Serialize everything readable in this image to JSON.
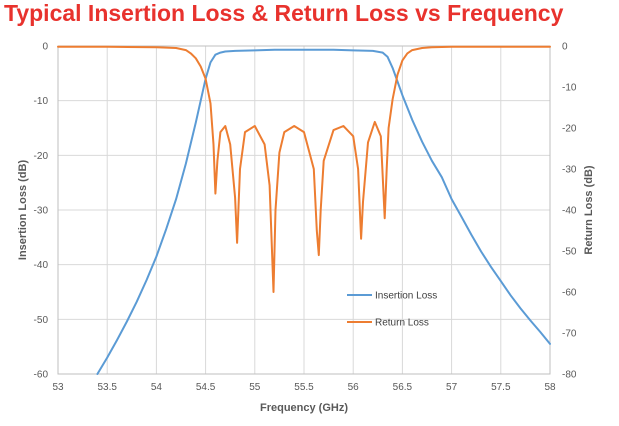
{
  "chart_data": {
    "type": "line",
    "title": "Typical Insertion Loss & Return Loss vs Frequency",
    "xlabel": "Frequency (GHz)",
    "ylabel_left": "Insertion Loss (dB)",
    "ylabel_right": "Return Loss (dB)",
    "xlim": [
      53,
      58
    ],
    "ylim_left": [
      -60,
      0
    ],
    "ylim_right": [
      -80,
      0
    ],
    "x_ticks": [
      "53",
      "53.5",
      "54",
      "54.5",
      "55",
      "55.5",
      "56",
      "56.5",
      "57",
      "57.5",
      "58"
    ],
    "y_ticks_left": [
      "0",
      "-10",
      "-20",
      "-30",
      "-40",
      "-50",
      "-60"
    ],
    "y_ticks_right": [
      "0",
      "-10",
      "-20",
      "-30",
      "-40",
      "-50",
      "-60",
      "-70",
      "-80"
    ],
    "grid": true,
    "legend_position": "center-right",
    "series": [
      {
        "name": "Insertion Loss",
        "axis": "left",
        "color": "#5b9bd5",
        "x": [
          53.4,
          53.5,
          53.6,
          53.7,
          53.8,
          53.9,
          54.0,
          54.1,
          54.2,
          54.3,
          54.4,
          54.5,
          54.55,
          54.6,
          54.65,
          54.7,
          54.8,
          55.0,
          55.2,
          55.5,
          55.8,
          56.0,
          56.2,
          56.3,
          56.35,
          56.4,
          56.45,
          56.5,
          56.6,
          56.7,
          56.8,
          56.9,
          57.0,
          57.1,
          57.2,
          57.3,
          57.4,
          57.5,
          57.6,
          57.7,
          57.8,
          57.9,
          58.0
        ],
        "y": [
          -60.0,
          -57.0,
          -53.8,
          -50.4,
          -46.8,
          -42.8,
          -38.5,
          -33.5,
          -28.0,
          -21.5,
          -14.0,
          -6.0,
          -3.0,
          -1.6,
          -1.2,
          -1.0,
          -0.9,
          -0.8,
          -0.7,
          -0.7,
          -0.7,
          -0.8,
          -0.9,
          -1.2,
          -2.0,
          -4.0,
          -6.5,
          -9.0,
          -13.5,
          -17.5,
          -21.0,
          -24.0,
          -28.0,
          -31.2,
          -34.5,
          -37.6,
          -40.4,
          -43.0,
          -45.6,
          -48.0,
          -50.2,
          -52.3,
          -54.5
        ]
      },
      {
        "name": "Return Loss",
        "axis": "right",
        "color": "#ed7d31",
        "x": [
          53.0,
          53.5,
          54.0,
          54.2,
          54.3,
          54.35,
          54.4,
          54.45,
          54.5,
          54.55,
          54.58,
          54.6,
          54.62,
          54.65,
          54.7,
          54.75,
          54.8,
          54.82,
          54.85,
          54.9,
          55.0,
          55.1,
          55.15,
          55.19,
          55.21,
          55.25,
          55.3,
          55.4,
          55.5,
          55.6,
          55.63,
          55.65,
          55.67,
          55.7,
          55.8,
          55.9,
          56.0,
          56.05,
          56.08,
          56.1,
          56.15,
          56.22,
          56.28,
          56.32,
          56.34,
          56.36,
          56.4,
          56.45,
          56.5,
          56.55,
          56.6,
          56.7,
          56.8,
          57.0,
          57.5,
          58.0
        ],
        "y": [
          -0.2,
          -0.2,
          -0.3,
          -0.5,
          -1.0,
          -1.8,
          -3.0,
          -5.0,
          -8.0,
          -14.0,
          -24.0,
          -36.0,
          -28.0,
          -21.0,
          -19.5,
          -24.0,
          -37.0,
          -48.0,
          -30.0,
          -21.0,
          -19.5,
          -24.0,
          -34.0,
          -60.0,
          -40.0,
          -26.0,
          -21.0,
          -19.5,
          -21.0,
          -30.0,
          -45.0,
          -51.0,
          -40.0,
          -28.0,
          -20.5,
          -19.5,
          -22.0,
          -30.0,
          -47.0,
          -38.0,
          -23.5,
          -18.5,
          -22.0,
          -42.0,
          -30.0,
          -20.0,
          -13.0,
          -7.0,
          -3.5,
          -1.8,
          -1.0,
          -0.5,
          -0.3,
          -0.2,
          -0.2,
          -0.2
        ]
      }
    ]
  }
}
